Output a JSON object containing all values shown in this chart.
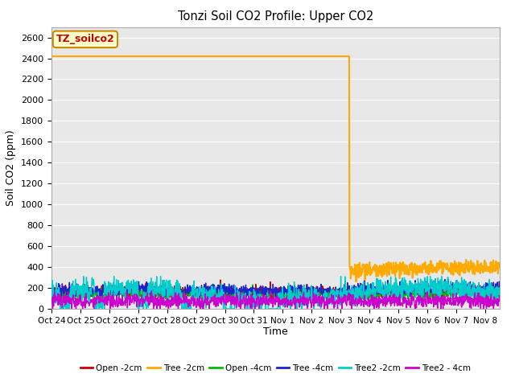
{
  "title": "Tonzi Soil CO2 Profile: Upper CO2",
  "ylabel": "Soil CO2 (ppm)",
  "xlabel": "Time",
  "annotation_text": "TZ_soilco2",
  "ylim": [
    0,
    2700
  ],
  "yticks": [
    0,
    200,
    400,
    600,
    800,
    1000,
    1200,
    1400,
    1600,
    1800,
    2000,
    2200,
    2400,
    2600
  ],
  "xtick_labels": [
    "Oct 24",
    "Oct 25",
    "Oct 26",
    "Oct 27",
    "Oct 28",
    "Oct 29",
    "Oct 30",
    "Oct 31",
    "Nov 1",
    "Nov 2",
    "Nov 3",
    "Nov 4",
    "Nov 5",
    "Nov 6",
    "Nov 7",
    "Nov 8"
  ],
  "fig_bg_color": "#ffffff",
  "plot_bg_color": "#e8e8e8",
  "grid_color": "#ffffff",
  "series": {
    "Open_2cm": {
      "color": "#cc0000",
      "lw": 1.0
    },
    "Tree_2cm": {
      "color": "#ffaa00",
      "lw": 1.5
    },
    "Open_4cm": {
      "color": "#00bb00",
      "lw": 1.0
    },
    "Tree_4cm": {
      "color": "#2222cc",
      "lw": 1.0
    },
    "Tree2_2cm": {
      "color": "#00cccc",
      "lw": 1.0
    },
    "Tree2_4cm": {
      "color": "#cc00cc",
      "lw": 1.0
    }
  },
  "legend": [
    {
      "label": "Open -2cm",
      "color": "#cc0000"
    },
    {
      "label": "Tree -2cm",
      "color": "#ffaa00"
    },
    {
      "label": "Open -4cm",
      "color": "#00bb00"
    },
    {
      "label": "Tree -4cm",
      "color": "#2222cc"
    },
    {
      "label": "Tree2 -2cm",
      "color": "#00cccc"
    },
    {
      "label": "Tree2 - 4cm",
      "color": "#cc00cc"
    }
  ]
}
